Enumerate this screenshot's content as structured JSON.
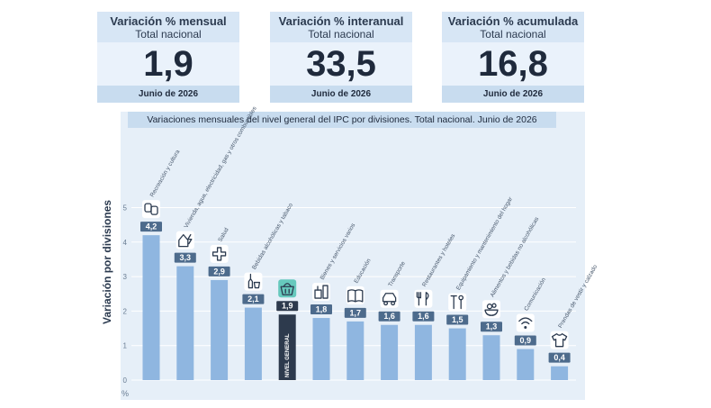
{
  "kpis": [
    {
      "title": "Variación % mensual",
      "subtitle": "Total nacional",
      "value": "1,9",
      "date": "Junio de 2026"
    },
    {
      "title": "Variación % interanual",
      "subtitle": "Total nacional",
      "value": "33,5",
      "date": "Junio de 2026"
    },
    {
      "title": "Variación % acumulada",
      "subtitle": "Total nacional",
      "value": "16,8",
      "date": "Junio de 2026"
    }
  ],
  "colors": {
    "bar": "#8fb6e0",
    "highlight": "#2d3a4d",
    "label_bg": "#4d6b8c",
    "panel": "#e6eff8",
    "header": "#d7e6f5",
    "icon_highlight": "#66c9bd"
  },
  "chart_data": {
    "type": "bar",
    "title": "Variaciones mensuales del nivel general del IPC por divisiones. Total nacional. Junio de 2026",
    "ylabel": "Variación por divisiones",
    "yunit": "%",
    "ylim": [
      0,
      5
    ],
    "yticks": [
      0,
      1,
      2,
      3,
      4,
      5
    ],
    "categories": [
      "Recreación y cultura",
      "Vivienda, agua, electricidad, gas y otros combustibles",
      "Salud",
      "Bebidas alcohólicas y tabaco",
      "NIVEL GENERAL",
      "Bienes y servicios varios",
      "Educación",
      "Transporte",
      "Restaurantes y hoteles",
      "Equipamiento y mantenimiento del hogar",
      "Alimentos y bebidas no alcohólicas",
      "Comunicación",
      "Prendas de vestir y calzado"
    ],
    "values": [
      4.2,
      3.3,
      2.9,
      2.1,
      1.9,
      1.8,
      1.7,
      1.6,
      1.6,
      1.5,
      1.3,
      0.9,
      0.4
    ],
    "value_labels": [
      "4,2",
      "3,3",
      "2,9",
      "2,1",
      "1,9",
      "1,8",
      "1,7",
      "1,6",
      "1,6",
      "1,5",
      "1,3",
      "0,9",
      "0,4"
    ],
    "highlight_index": 4,
    "icons": [
      "theater-masks-icon",
      "house-power-icon",
      "health-cross-icon",
      "bottle-glass-icon",
      "shopping-basket-icon",
      "misc-goods-icon",
      "book-icon",
      "car-icon",
      "cutlery-icon",
      "tools-icon",
      "food-icon",
      "wifi-icon",
      "tshirt-icon"
    ]
  }
}
